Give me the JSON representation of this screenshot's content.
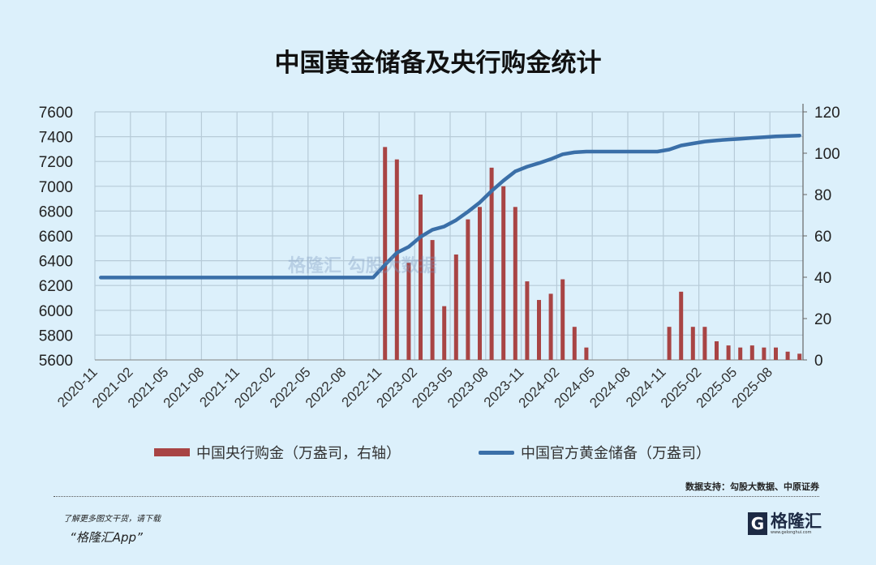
{
  "title": "中国黄金储备及央行购金统计",
  "chart_data": {
    "type": "bar+line",
    "title": "中国黄金储备及央行购金统计",
    "x_tick_labels": [
      "2020-11",
      "2021-02",
      "2021-05",
      "2021-08",
      "2021-11",
      "2022-02",
      "2022-05",
      "2022-08",
      "2022-11",
      "2023-02",
      "2023-05",
      "2023-08",
      "2023-11",
      "2024-02",
      "2024-05",
      "2024-08",
      "2024-11",
      "2025-02",
      "2025-05",
      "2025-08"
    ],
    "months": [
      "2020-11",
      "2020-12",
      "2021-01",
      "2021-02",
      "2021-03",
      "2021-04",
      "2021-05",
      "2021-06",
      "2021-07",
      "2021-08",
      "2021-09",
      "2021-10",
      "2021-11",
      "2021-12",
      "2022-01",
      "2022-02",
      "2022-03",
      "2022-04",
      "2022-05",
      "2022-06",
      "2022-07",
      "2022-08",
      "2022-09",
      "2022-10",
      "2022-11",
      "2022-12",
      "2023-01",
      "2023-02",
      "2023-03",
      "2023-04",
      "2023-05",
      "2023-06",
      "2023-07",
      "2023-08",
      "2023-09",
      "2023-10",
      "2023-11",
      "2023-12",
      "2024-01",
      "2024-02",
      "2024-03",
      "2024-04",
      "2024-05",
      "2024-06",
      "2024-07",
      "2024-08",
      "2024-09",
      "2024-10",
      "2024-11",
      "2024-12",
      "2025-01",
      "2025-02",
      "2025-03",
      "2025-04",
      "2025-05",
      "2025-06",
      "2025-07",
      "2025-08",
      "2025-09",
      "2025-10"
    ],
    "left_axis": {
      "ylim": [
        5600,
        7600
      ],
      "ticks": [
        5600,
        5800,
        6000,
        6200,
        6400,
        6600,
        6800,
        7000,
        7200,
        7400,
        7600
      ]
    },
    "right_axis": {
      "ylim": [
        0,
        120
      ],
      "ticks": [
        0,
        20,
        40,
        60,
        80,
        100,
        120
      ]
    },
    "grid": true,
    "legend_position": "bottom",
    "series": [
      {
        "name": "中国央行购金（万盎司，右轴）",
        "type": "bar",
        "axis": "right",
        "color": "#a84444",
        "values": [
          0,
          0,
          0,
          0,
          0,
          0,
          0,
          0,
          0,
          0,
          0,
          0,
          0,
          0,
          0,
          0,
          0,
          0,
          0,
          0,
          0,
          0,
          0,
          0,
          103,
          97,
          47,
          80,
          58,
          26,
          51,
          68,
          74,
          93,
          84,
          74,
          38,
          29,
          32,
          39,
          16,
          6,
          0,
          0,
          0,
          0,
          0,
          0,
          16,
          33,
          16,
          16,
          9,
          7,
          6,
          7,
          6,
          6,
          4,
          3
        ]
      },
      {
        "name": "中国官方黄金储备（万盎司）",
        "type": "line",
        "axis": "left",
        "color": "#3a6fa8",
        "values": [
          6264,
          6264,
          6264,
          6264,
          6264,
          6264,
          6264,
          6264,
          6264,
          6264,
          6264,
          6264,
          6264,
          6264,
          6264,
          6264,
          6264,
          6264,
          6264,
          6264,
          6264,
          6264,
          6264,
          6264,
          6367,
          6464,
          6512,
          6592,
          6650,
          6676,
          6727,
          6795,
          6869,
          6962,
          7046,
          7120,
          7158,
          7187,
          7219,
          7258,
          7274,
          7280,
          7280,
          7280,
          7280,
          7280,
          7280,
          7280,
          7296,
          7329,
          7345,
          7361,
          7370,
          7377,
          7383,
          7390,
          7396,
          7402,
          7406,
          7409
        ]
      }
    ]
  },
  "legend": {
    "bar": "中国央行购金（万盎司，右轴）",
    "line": "中国官方黄金储备（万盎司）"
  },
  "watermark": "格隆汇 勾股大数据",
  "source": "数据支持：勾股大数据、中原证券",
  "footer": {
    "promo_line1": "了解更多图文干货，请下载",
    "promo_line2": "“格隆汇App”",
    "logo_text": "格隆汇",
    "logo_url": "www.gelonghui.com"
  }
}
